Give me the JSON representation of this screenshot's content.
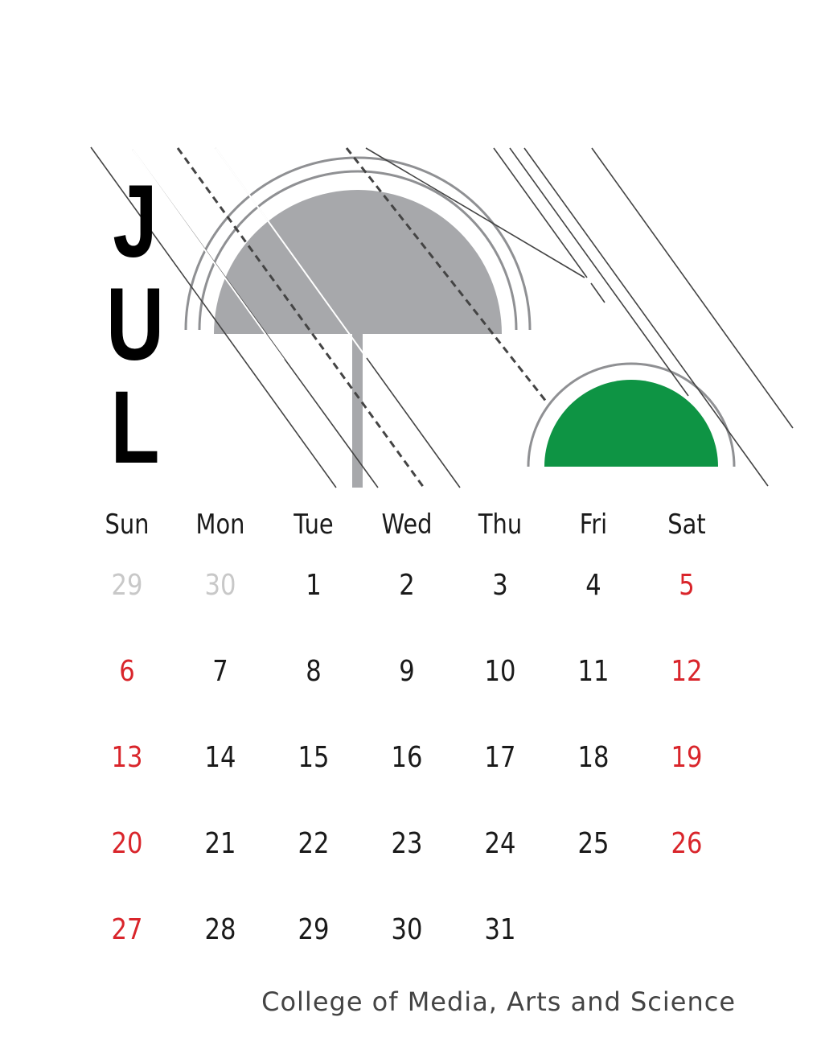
{
  "calendar": {
    "month": [
      "J",
      "U",
      "L"
    ],
    "weekdays": [
      "Sun",
      "Mon",
      "Tue",
      "Wed",
      "Thu",
      "Fri",
      "Sat"
    ],
    "weeks": [
      [
        {
          "d": "29",
          "t": "muted"
        },
        {
          "d": "30",
          "t": "muted"
        },
        {
          "d": "1",
          "t": "normal"
        },
        {
          "d": "2",
          "t": "normal"
        },
        {
          "d": "3",
          "t": "normal"
        },
        {
          "d": "4",
          "t": "normal"
        },
        {
          "d": "5",
          "t": "weekend"
        }
      ],
      [
        {
          "d": "6",
          "t": "weekend"
        },
        {
          "d": "7",
          "t": "normal"
        },
        {
          "d": "8",
          "t": "normal"
        },
        {
          "d": "9",
          "t": "normal"
        },
        {
          "d": "10",
          "t": "normal"
        },
        {
          "d": "11",
          "t": "normal"
        },
        {
          "d": "12",
          "t": "weekend"
        }
      ],
      [
        {
          "d": "13",
          "t": "weekend"
        },
        {
          "d": "14",
          "t": "normal"
        },
        {
          "d": "15",
          "t": "normal"
        },
        {
          "d": "16",
          "t": "normal"
        },
        {
          "d": "17",
          "t": "normal"
        },
        {
          "d": "18",
          "t": "normal"
        },
        {
          "d": "19",
          "t": "weekend"
        }
      ],
      [
        {
          "d": "20",
          "t": "weekend"
        },
        {
          "d": "21",
          "t": "normal"
        },
        {
          "d": "22",
          "t": "normal"
        },
        {
          "d": "23",
          "t": "normal"
        },
        {
          "d": "24",
          "t": "normal"
        },
        {
          "d": "25",
          "t": "normal"
        },
        {
          "d": "26",
          "t": "weekend"
        }
      ],
      [
        {
          "d": "27",
          "t": "weekend"
        },
        {
          "d": "28",
          "t": "normal"
        },
        {
          "d": "29",
          "t": "normal"
        },
        {
          "d": "30",
          "t": "normal"
        },
        {
          "d": "31",
          "t": "normal"
        }
      ]
    ]
  },
  "footer": {
    "text": "College of Media, Arts and Science"
  },
  "colors": {
    "weekend": "#d9252b",
    "muted": "#c8c8c8",
    "text": "#1a1a1a",
    "green": "#0e9444",
    "umbrella_gray": "#a7a8ab",
    "rain": "#444444"
  },
  "icons": {
    "umbrella": "umbrella-icon",
    "sun": "half-sun-icon",
    "rain": "rain-lines"
  }
}
